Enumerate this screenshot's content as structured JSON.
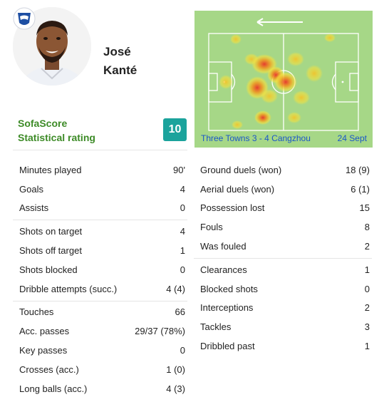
{
  "player": {
    "first_name": "José",
    "last_name": "Kanté",
    "avatar_icon": "player-photo-icon",
    "club_badge_icon": "club-badge-icon"
  },
  "rating": {
    "label_line1": "SofaScore",
    "label_line2": "Statistical rating",
    "value": "10",
    "color": "#1ba39c"
  },
  "heatmap": {
    "direction_icon": "arrow-left-icon",
    "match": "Three Towns 3 - 4 Cangzhou",
    "date": "24 Sept"
  },
  "stats_left": [
    [
      {
        "label": "Minutes played",
        "value": "90'"
      },
      {
        "label": "Goals",
        "value": "4"
      },
      {
        "label": "Assists",
        "value": "0"
      }
    ],
    [
      {
        "label": "Shots on target",
        "value": "4"
      },
      {
        "label": "Shots off target",
        "value": "1"
      },
      {
        "label": "Shots blocked",
        "value": "0"
      },
      {
        "label": "Dribble attempts (succ.)",
        "value": "4 (4)"
      }
    ],
    [
      {
        "label": "Touches",
        "value": "66"
      },
      {
        "label": "Acc. passes",
        "value": "29/37 (78%)"
      },
      {
        "label": "Key passes",
        "value": "0"
      },
      {
        "label": "Crosses (acc.)",
        "value": "1 (0)"
      },
      {
        "label": "Long balls (acc.)",
        "value": "4 (3)"
      }
    ]
  ],
  "stats_right": [
    [
      {
        "label": "Ground duels (won)",
        "value": "18 (9)"
      },
      {
        "label": "Aerial duels (won)",
        "value": "6 (1)"
      },
      {
        "label": "Possession lost",
        "value": "15"
      },
      {
        "label": "Fouls",
        "value": "8"
      },
      {
        "label": "Was fouled",
        "value": "2"
      }
    ],
    [
      {
        "label": "Clearances",
        "value": "1"
      },
      {
        "label": "Blocked shots",
        "value": "0"
      },
      {
        "label": "Interceptions",
        "value": "2"
      },
      {
        "label": "Tackles",
        "value": "3"
      },
      {
        "label": "Dribbled past",
        "value": "1"
      }
    ]
  ]
}
